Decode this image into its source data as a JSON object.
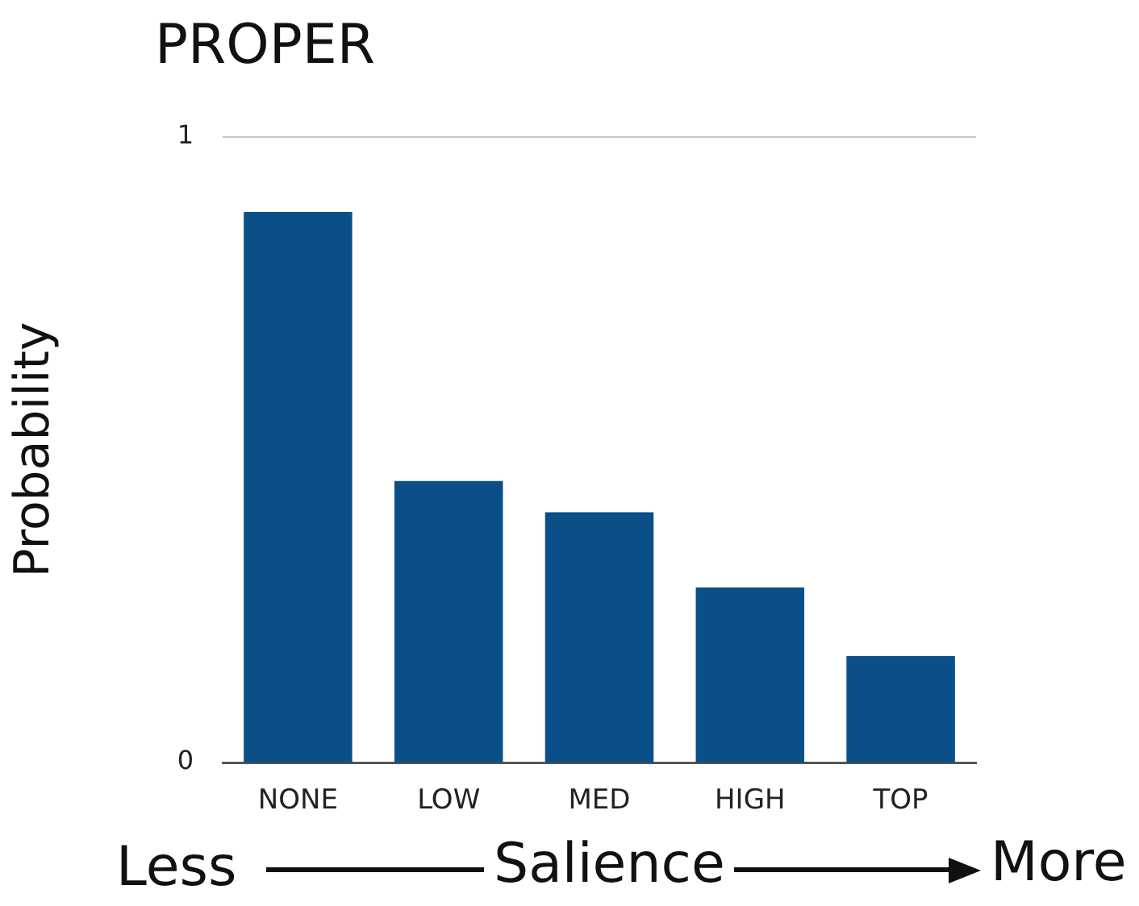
{
  "chart_data": {
    "type": "bar",
    "title": "PROPER",
    "xlabel": "Salience",
    "ylabel": "Probability",
    "categories": [
      "NONE",
      "LOW",
      "MED",
      "HIGH",
      "TOP"
    ],
    "values": [
      0.88,
      0.45,
      0.4,
      0.28,
      0.17
    ],
    "color": "#0a4f87",
    "ylim": [
      0,
      1
    ],
    "yticks": [
      0,
      1
    ],
    "ref_lines": [
      {
        "axis": "y",
        "value": 1,
        "color": "#c8c8c8"
      }
    ],
    "annotations": [
      "Less",
      "More"
    ]
  }
}
